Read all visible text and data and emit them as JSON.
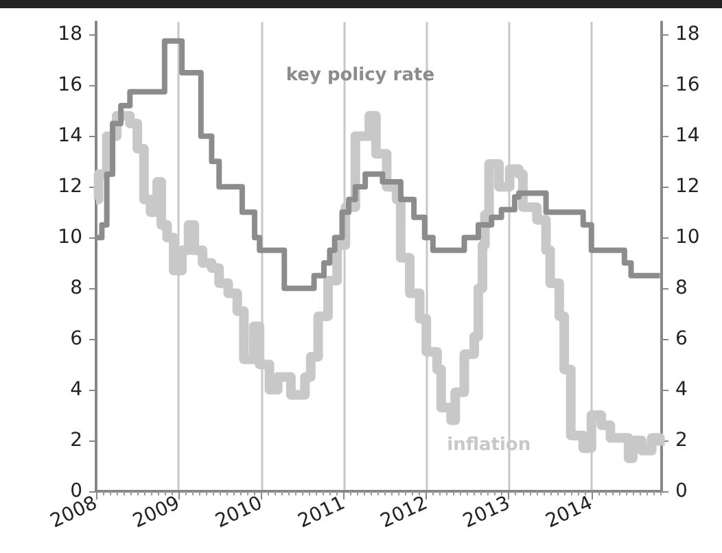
{
  "chart_data": {
    "type": "step",
    "series": [
      {
        "name": "key policy rate",
        "color": "#8c8c8c",
        "x": [
          2008.0,
          2008.07,
          2008.13,
          2008.2,
          2008.3,
          2008.41,
          2008.83,
          2009.04,
          2009.27,
          2009.4,
          2009.49,
          2009.77,
          2009.92,
          2009.98,
          2010.28,
          2010.64,
          2010.76,
          2010.83,
          2010.89,
          2010.98,
          2011.06,
          2011.14,
          2011.26,
          2011.47,
          2011.69,
          2011.85,
          2011.98,
          2012.08,
          2012.46,
          2012.63,
          2012.79,
          2012.91,
          2013.07,
          2013.12,
          2013.45,
          2013.9,
          2014.0,
          2014.4,
          2014.48,
          2014.83
        ],
        "values": [
          10,
          10.5,
          12.5,
          14.5,
          15.2,
          15.75,
          17.75,
          16.5,
          14,
          13,
          12,
          11,
          10,
          9.5,
          8,
          8.5,
          9,
          9.5,
          10,
          11,
          11.5,
          12,
          12.5,
          12.2,
          11.5,
          10.8,
          10,
          9.5,
          10,
          10.5,
          10.8,
          11.1,
          11.6,
          11.75,
          11,
          10.5,
          9.5,
          9,
          8.5,
          8.5
        ]
      },
      {
        "name": "inflation",
        "color": "#c8c8c8",
        "x": [
          2008.0,
          2008.03,
          2008.13,
          2008.25,
          2008.41,
          2008.5,
          2008.58,
          2008.66,
          2008.74,
          2008.79,
          2008.86,
          2008.94,
          2009.04,
          2009.12,
          2009.19,
          2009.29,
          2009.4,
          2009.49,
          2009.6,
          2009.71,
          2009.79,
          2009.91,
          2009.98,
          2010.1,
          2010.2,
          2010.36,
          2010.53,
          2010.6,
          2010.69,
          2010.81,
          2010.92,
          2011.02,
          2011.14,
          2011.31,
          2011.39,
          2011.52,
          2011.64,
          2011.69,
          2011.8,
          2011.92,
          2012.0,
          2012.13,
          2012.18,
          2012.3,
          2012.35,
          2012.46,
          2012.58,
          2012.63,
          2012.68,
          2012.71,
          2012.76,
          2012.88,
          2013.01,
          2013.12,
          2013.17,
          2013.34,
          2013.45,
          2013.5,
          2013.61,
          2013.67,
          2013.75,
          2013.9,
          2014.0,
          2014.12,
          2014.23,
          2014.45,
          2014.5,
          2014.61,
          2014.73,
          2014.83
        ],
        "values": [
          11.5,
          12.5,
          14,
          14.8,
          14.5,
          13.5,
          11.5,
          11,
          12.2,
          10.5,
          10,
          8.7,
          9.5,
          10.5,
          9.5,
          9,
          8.8,
          8.2,
          7.8,
          7.1,
          5.2,
          6.5,
          5,
          4,
          4.5,
          3.8,
          4.5,
          5.3,
          6.9,
          8.3,
          9.7,
          11.2,
          14,
          14.8,
          13.3,
          12,
          11.5,
          9.2,
          7.8,
          6.8,
          5.5,
          4.8,
          3.3,
          2.8,
          3.9,
          5.4,
          6.1,
          8,
          9.7,
          10.9,
          12.9,
          12,
          12.7,
          12.5,
          11.2,
          10.7,
          9.5,
          8.2,
          6.9,
          4.8,
          2.2,
          1.7,
          3,
          2.6,
          2.1,
          1.3,
          2,
          1.6,
          2.1,
          1.8
        ]
      }
    ],
    "xlim": [
      2008,
      2014.85
    ],
    "xticks": [
      2008,
      2009,
      2010,
      2011,
      2012,
      2013,
      2014
    ],
    "ylim": [
      0,
      18.5
    ],
    "yticks": [
      0,
      2,
      4,
      6,
      8,
      10,
      12,
      14,
      16,
      18
    ],
    "y2lim": [
      0,
      18.5
    ],
    "y2ticks": [
      0,
      2,
      4,
      6,
      8,
      10,
      12,
      14,
      16,
      18
    ],
    "grid": "x",
    "legend": false,
    "marker": "none",
    "line_style": "solid"
  }
}
